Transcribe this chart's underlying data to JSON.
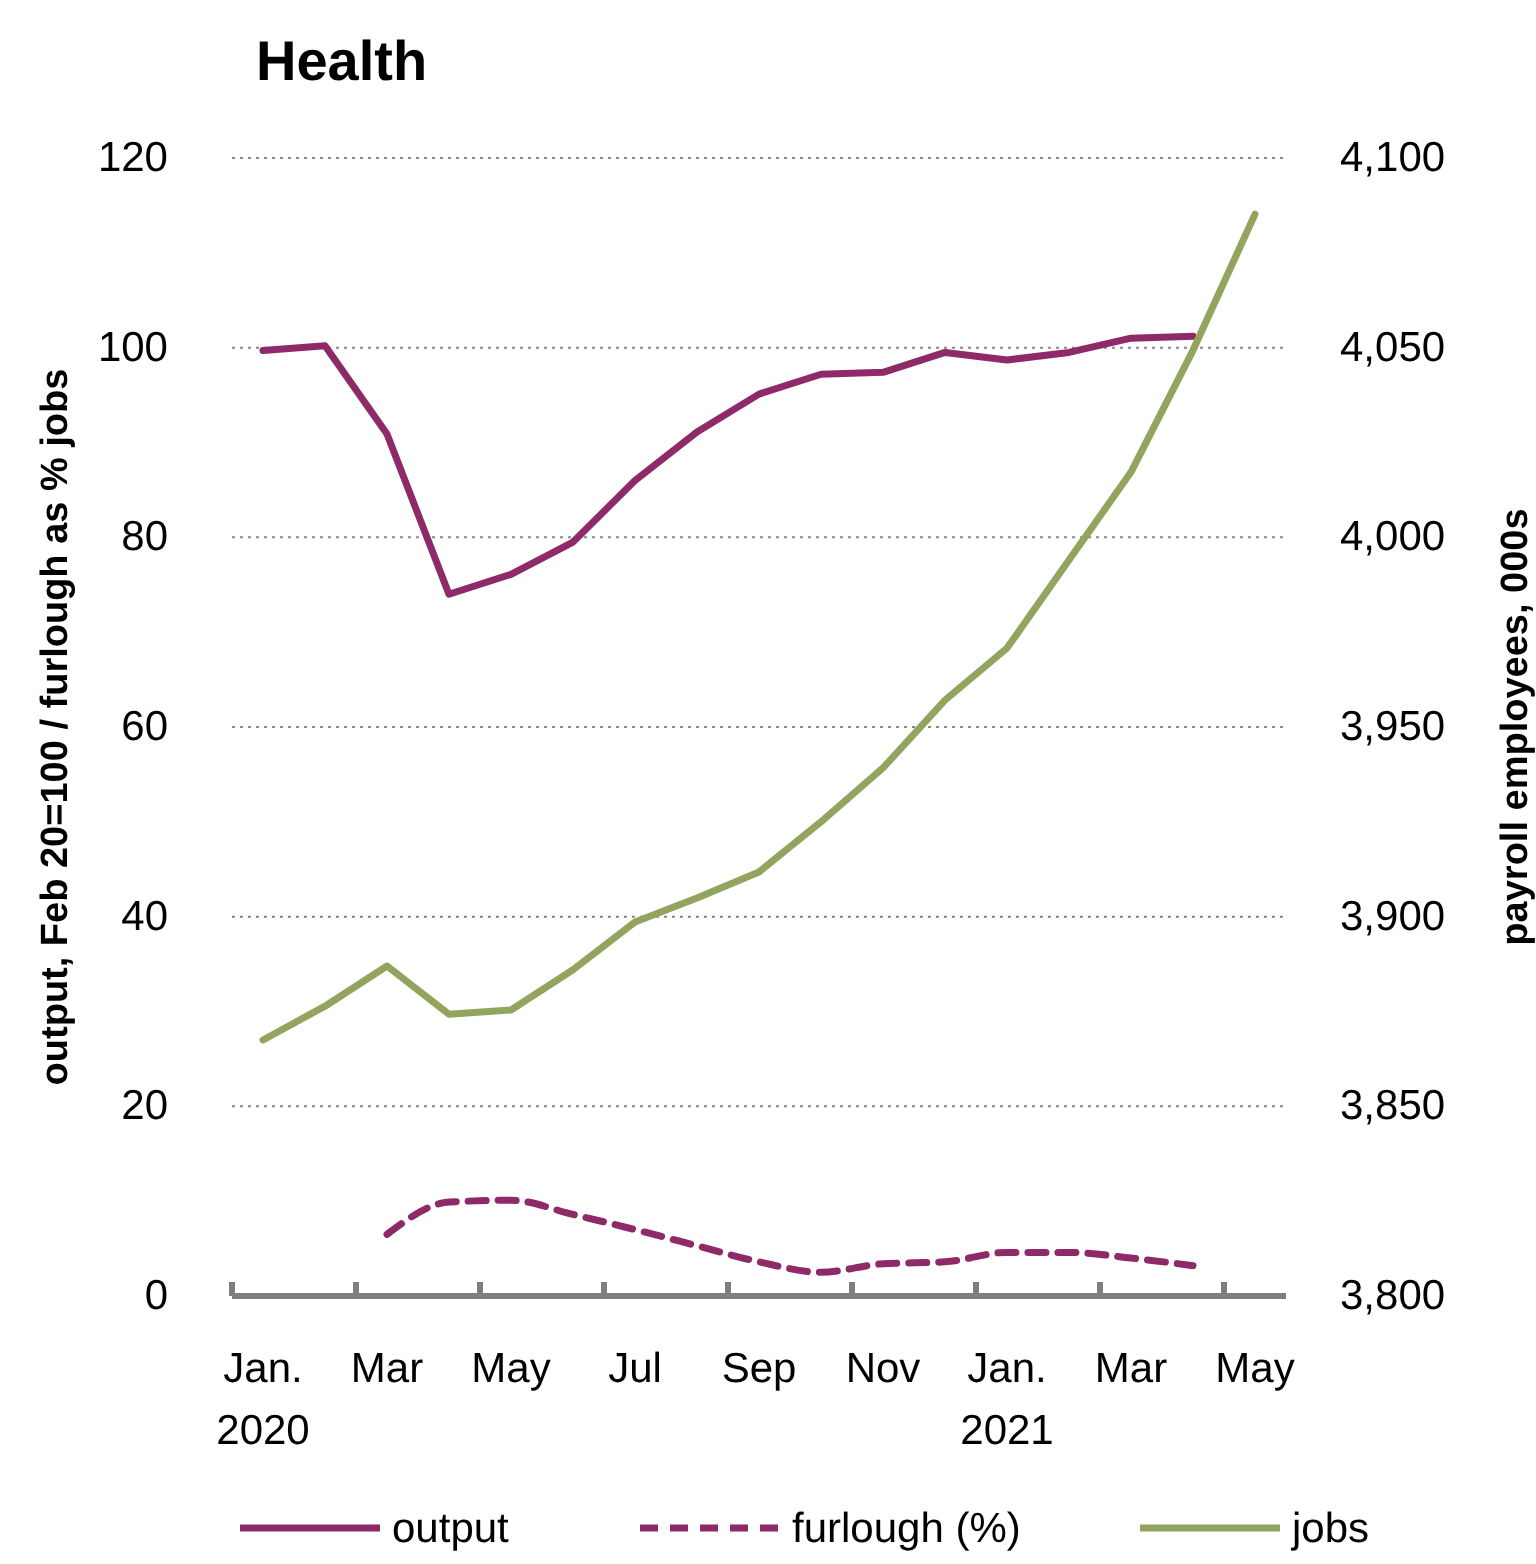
{
  "chart_data": {
    "type": "line",
    "title": "Health",
    "ylabel": "output, Feb 20=100 / furlough as % jobs",
    "y2label": "payroll employees, 000s",
    "categories": [
      "Jan.\n2020",
      null,
      "Mar",
      null,
      "May",
      null,
      "Jul",
      null,
      "Sep",
      null,
      "Nov",
      null,
      "Jan.\n2021",
      null,
      "Mar",
      null,
      "May"
    ],
    "ylim": [
      0,
      120
    ],
    "yticks": [
      0,
      20,
      40,
      60,
      80,
      100,
      120
    ],
    "y2lim": [
      3800,
      4100
    ],
    "y2ticks": [
      {
        "value": 3800,
        "label": "3,800"
      },
      {
        "value": 3850,
        "label": "3,850"
      },
      {
        "value": 3900,
        "label": "3,900"
      },
      {
        "value": 3950,
        "label": "3,950"
      },
      {
        "value": 4000,
        "label": "4,000"
      },
      {
        "value": 4050,
        "label": "4,050"
      },
      {
        "value": 4100,
        "label": "4,100"
      }
    ],
    "grid": "y",
    "legend": "bottom",
    "marker": "none",
    "series": [
      {
        "name": "output",
        "color": "#8e2a68",
        "line_style": "solid",
        "values": [
          99.7,
          100.2,
          90.9,
          74.0,
          76.1,
          79.5,
          86.0,
          91.1,
          95.1,
          97.2,
          97.4,
          99.5,
          98.7,
          99.5,
          101.0,
          101.2,
          null
        ]
      },
      {
        "name": "furlough (%)",
        "color": "#8e2a68",
        "line_style": "dashed",
        "values": [
          null,
          null,
          6.5,
          9.9,
          10.1,
          8.6,
          7.0,
          5.3,
          3.6,
          2.5,
          3.4,
          3.6,
          4.6,
          4.6,
          4.0,
          3.2,
          null
        ]
      },
      {
        "name": "jobs",
        "color": "#92a45e",
        "line_style": "solid",
        "axis": "y2",
        "values": [
          3867.5,
          3876.4,
          3887,
          3874.3,
          3875.4,
          3886,
          3898.6,
          3904.9,
          3911.8,
          3925,
          3939.2,
          3957.1,
          3970.8,
          3994,
          4017.2,
          4049.3,
          4085.2
        ]
      }
    ]
  }
}
